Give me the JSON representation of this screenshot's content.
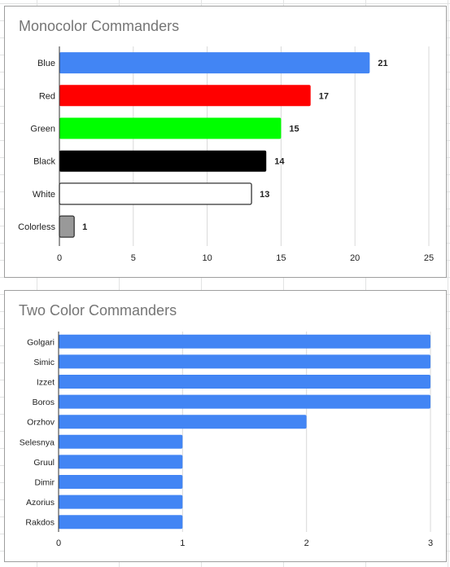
{
  "chart_data": [
    {
      "type": "bar",
      "orientation": "horizontal",
      "title": "Monocolor Commanders",
      "categories": [
        "Blue",
        "Red",
        "Green",
        "Black",
        "White",
        "Colorless"
      ],
      "values": [
        21,
        17,
        15,
        14,
        13,
        1
      ],
      "colors": [
        "#4285f4",
        "#ff0000",
        "#00ff00",
        "#000000",
        "#ffffff",
        "#999999"
      ],
      "data_labels": [
        "21",
        "17",
        "15",
        "14",
        "13",
        "1"
      ],
      "xlim": [
        0,
        25
      ],
      "xticks": [
        "0",
        "5",
        "10",
        "15",
        "20",
        "25"
      ],
      "grid": true,
      "legend": "none"
    },
    {
      "type": "bar",
      "orientation": "horizontal",
      "title": "Two Color Commanders",
      "categories": [
        "Golgari",
        "Simic",
        "Izzet",
        "Boros",
        "Orzhov",
        "Selesnya",
        "Gruul",
        "Dimir",
        "Azorius",
        "Rakdos"
      ],
      "values": [
        3,
        3,
        3,
        3,
        2,
        1,
        1,
        1,
        1,
        1
      ],
      "colors": [
        "#4285f4"
      ],
      "xlim": [
        0,
        3
      ],
      "xticks": [
        "0",
        "1",
        "2",
        "3"
      ],
      "grid": true,
      "legend": "none"
    }
  ]
}
